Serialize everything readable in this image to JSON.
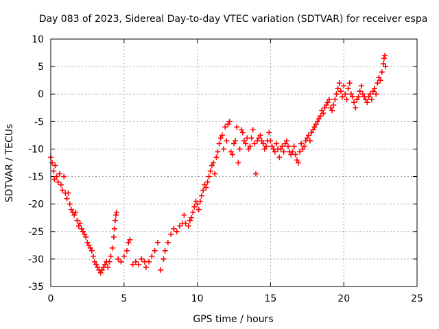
{
  "chart_data": {
    "type": "scatter",
    "title": "Day 083 of 2023, Sidereal Day-to-day VTEC variation (SDTVAR) for receiver espa",
    "xlabel": "GPS time / hours",
    "ylabel": "SDTVAR / TECUs",
    "xlim": [
      0,
      25
    ],
    "ylim": [
      -35,
      10
    ],
    "xticks": [
      0,
      5,
      10,
      15,
      20,
      25
    ],
    "yticks": [
      -35,
      -30,
      -25,
      -20,
      -15,
      -10,
      -5,
      0,
      5,
      10
    ],
    "grid": true,
    "marker": "+",
    "color": "#ff0000",
    "series": [
      {
        "name": "SDTVAR",
        "points": [
          [
            0.0,
            -11.5
          ],
          [
            0.1,
            -12.5
          ],
          [
            0.2,
            -14.0
          ],
          [
            0.25,
            -15.5
          ],
          [
            0.3,
            -13.0
          ],
          [
            0.4,
            -15.0
          ],
          [
            0.5,
            -16.0
          ],
          [
            0.6,
            -14.5
          ],
          [
            0.7,
            -16.5
          ],
          [
            0.8,
            -17.5
          ],
          [
            0.9,
            -15.0
          ],
          [
            1.0,
            -18.0
          ],
          [
            1.1,
            -19.0
          ],
          [
            1.2,
            -18.0
          ],
          [
            1.3,
            -20.0
          ],
          [
            1.4,
            -21.0
          ],
          [
            1.5,
            -21.5
          ],
          [
            1.6,
            -22.0
          ],
          [
            1.7,
            -21.5
          ],
          [
            1.8,
            -23.0
          ],
          [
            1.9,
            -24.0
          ],
          [
            2.0,
            -23.5
          ],
          [
            2.1,
            -24.5
          ],
          [
            2.2,
            -25.0
          ],
          [
            2.3,
            -25.5
          ],
          [
            2.4,
            -26.0
          ],
          [
            2.5,
            -27.0
          ],
          [
            2.6,
            -27.5
          ],
          [
            2.7,
            -28.0
          ],
          [
            2.8,
            -28.5
          ],
          [
            2.9,
            -29.5
          ],
          [
            3.0,
            -30.5
          ],
          [
            3.1,
            -31.0
          ],
          [
            3.2,
            -31.5
          ],
          [
            3.3,
            -32.0
          ],
          [
            3.4,
            -32.5
          ],
          [
            3.5,
            -32.0
          ],
          [
            3.6,
            -31.5
          ],
          [
            3.7,
            -31.0
          ],
          [
            3.8,
            -30.5
          ],
          [
            3.9,
            -31.5
          ],
          [
            4.0,
            -30.5
          ],
          [
            4.1,
            -29.5
          ],
          [
            4.2,
            -28.0
          ],
          [
            4.3,
            -26.0
          ],
          [
            4.35,
            -24.5
          ],
          [
            4.4,
            -23.0
          ],
          [
            4.45,
            -22.0
          ],
          [
            4.5,
            -21.5
          ],
          [
            4.6,
            -30.0
          ],
          [
            4.8,
            -30.5
          ],
          [
            5.0,
            -29.5
          ],
          [
            5.2,
            -28.5
          ],
          [
            5.3,
            -27.0
          ],
          [
            5.4,
            -26.5
          ],
          [
            5.6,
            -31.0
          ],
          [
            5.8,
            -30.5
          ],
          [
            6.0,
            -31.0
          ],
          [
            6.2,
            -30.0
          ],
          [
            6.4,
            -30.5
          ],
          [
            6.5,
            -31.5
          ],
          [
            6.7,
            -30.5
          ],
          [
            6.9,
            -29.5
          ],
          [
            7.1,
            -28.5
          ],
          [
            7.3,
            -27.0
          ],
          [
            7.5,
            -32.0
          ],
          [
            7.7,
            -30.0
          ],
          [
            7.8,
            -28.5
          ],
          [
            8.0,
            -27.0
          ],
          [
            8.2,
            -25.5
          ],
          [
            8.4,
            -24.5
          ],
          [
            8.6,
            -25.0
          ],
          [
            8.8,
            -24.0
          ],
          [
            9.0,
            -23.5
          ],
          [
            9.1,
            -22.0
          ],
          [
            9.2,
            -23.5
          ],
          [
            9.4,
            -24.0
          ],
          [
            9.5,
            -23.0
          ],
          [
            9.6,
            -22.5
          ],
          [
            9.7,
            -21.5
          ],
          [
            9.8,
            -20.5
          ],
          [
            9.9,
            -19.5
          ],
          [
            10.0,
            -20.0
          ],
          [
            10.1,
            -21.0
          ],
          [
            10.2,
            -19.5
          ],
          [
            10.3,
            -18.5
          ],
          [
            10.4,
            -17.5
          ],
          [
            10.5,
            -16.5
          ],
          [
            10.6,
            -17.0
          ],
          [
            10.7,
            -16.0
          ],
          [
            10.8,
            -15.0
          ],
          [
            10.9,
            -14.0
          ],
          [
            11.0,
            -13.0
          ],
          [
            11.1,
            -12.5
          ],
          [
            11.2,
            -14.5
          ],
          [
            11.3,
            -11.5
          ],
          [
            11.4,
            -10.5
          ],
          [
            11.5,
            -9.0
          ],
          [
            11.6,
            -8.0
          ],
          [
            11.7,
            -7.5
          ],
          [
            11.8,
            -10.0
          ],
          [
            11.9,
            -6.0
          ],
          [
            12.0,
            -8.5
          ],
          [
            12.1,
            -5.5
          ],
          [
            12.2,
            -5.0
          ],
          [
            12.3,
            -10.5
          ],
          [
            12.4,
            -11.0
          ],
          [
            12.5,
            -9.0
          ],
          [
            12.6,
            -8.5
          ],
          [
            12.7,
            -6.0
          ],
          [
            12.8,
            -12.5
          ],
          [
            12.9,
            -10.0
          ],
          [
            13.0,
            -6.5
          ],
          [
            13.1,
            -7.0
          ],
          [
            13.2,
            -8.5
          ],
          [
            13.3,
            -9.0
          ],
          [
            13.4,
            -8.0
          ],
          [
            13.5,
            -10.0
          ],
          [
            13.6,
            -9.5
          ],
          [
            13.7,
            -8.0
          ],
          [
            13.8,
            -6.5
          ],
          [
            13.9,
            -9.0
          ],
          [
            14.0,
            -14.5
          ],
          [
            14.1,
            -8.5
          ],
          [
            14.2,
            -8.0
          ],
          [
            14.3,
            -7.5
          ],
          [
            14.4,
            -8.5
          ],
          [
            14.5,
            -9.0
          ],
          [
            14.6,
            -10.0
          ],
          [
            14.7,
            -9.5
          ],
          [
            14.8,
            -8.5
          ],
          [
            14.9,
            -7.0
          ],
          [
            15.0,
            -8.5
          ],
          [
            15.1,
            -9.5
          ],
          [
            15.2,
            -10.0
          ],
          [
            15.3,
            -10.5
          ],
          [
            15.4,
            -9.0
          ],
          [
            15.5,
            -10.0
          ],
          [
            15.6,
            -11.5
          ],
          [
            15.7,
            -10.0
          ],
          [
            15.8,
            -9.5
          ],
          [
            15.9,
            -10.5
          ],
          [
            16.0,
            -9.0
          ],
          [
            16.1,
            -8.5
          ],
          [
            16.2,
            -9.5
          ],
          [
            16.3,
            -10.5
          ],
          [
            16.4,
            -11.0
          ],
          [
            16.5,
            -10.5
          ],
          [
            16.6,
            -9.5
          ],
          [
            16.7,
            -11.0
          ],
          [
            16.8,
            -12.0
          ],
          [
            16.9,
            -12.5
          ],
          [
            17.0,
            -10.5
          ],
          [
            17.1,
            -9.0
          ],
          [
            17.2,
            -10.0
          ],
          [
            17.3,
            -9.5
          ],
          [
            17.4,
            -8.5
          ],
          [
            17.5,
            -8.0
          ],
          [
            17.6,
            -7.5
          ],
          [
            17.7,
            -8.5
          ],
          [
            17.8,
            -7.0
          ],
          [
            17.9,
            -6.5
          ],
          [
            18.0,
            -6.0
          ],
          [
            18.1,
            -5.5
          ],
          [
            18.2,
            -5.0
          ],
          [
            18.3,
            -4.5
          ],
          [
            18.4,
            -4.0
          ],
          [
            18.5,
            -3.0
          ],
          [
            18.6,
            -3.5
          ],
          [
            18.7,
            -2.5
          ],
          [
            18.8,
            -2.0
          ],
          [
            18.9,
            -1.5
          ],
          [
            19.0,
            -1.0
          ],
          [
            19.1,
            -2.5
          ],
          [
            19.2,
            -3.0
          ],
          [
            19.3,
            -2.0
          ],
          [
            19.4,
            -1.0
          ],
          [
            19.5,
            0.0
          ],
          [
            19.6,
            1.0
          ],
          [
            19.7,
            2.0
          ],
          [
            19.8,
            0.5
          ],
          [
            19.9,
            -0.5
          ],
          [
            20.0,
            1.5
          ],
          [
            20.1,
            0.0
          ],
          [
            20.2,
            -1.0
          ],
          [
            20.3,
            1.0
          ],
          [
            20.4,
            2.0
          ],
          [
            20.5,
            0.0
          ],
          [
            20.6,
            -0.5
          ],
          [
            20.7,
            -1.5
          ],
          [
            20.8,
            -2.5
          ],
          [
            20.9,
            -1.0
          ],
          [
            21.0,
            -0.5
          ],
          [
            21.1,
            0.5
          ],
          [
            21.2,
            1.5
          ],
          [
            21.3,
            0.0
          ],
          [
            21.4,
            -0.5
          ],
          [
            21.5,
            -1.0
          ],
          [
            21.6,
            -1.5
          ],
          [
            21.7,
            -0.5
          ],
          [
            21.8,
            0.0
          ],
          [
            21.9,
            -1.0
          ],
          [
            22.0,
            0.5
          ],
          [
            22.1,
            1.0
          ],
          [
            22.2,
            0.0
          ],
          [
            22.3,
            2.0
          ],
          [
            22.4,
            3.0
          ],
          [
            22.5,
            2.5
          ],
          [
            22.6,
            4.0
          ],
          [
            22.7,
            5.5
          ],
          [
            22.75,
            6.5
          ],
          [
            22.8,
            7.0
          ],
          [
            22.85,
            5.0
          ]
        ]
      }
    ]
  }
}
